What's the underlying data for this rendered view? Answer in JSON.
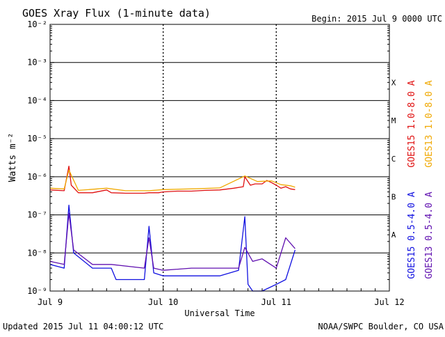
{
  "header": {
    "title": "GOES Xray Flux (1-minute data)",
    "begin": "Begin:  2015 Jul 9 0000 UTC"
  },
  "footer": {
    "updated": "Updated 2015 Jul 11 04:00:12 UTC",
    "credit": "NOAA/SWPC Boulder, CO USA"
  },
  "colors": {
    "goes15_long": "#e01010",
    "goes13_long": "#f0a800",
    "goes15_short": "#1010e0",
    "goes13_short": "#6010b0",
    "grid": "#000000"
  },
  "chart_data": {
    "type": "line",
    "title": "GOES Xray Flux (1-minute data)",
    "xlabel": "Universal Time",
    "ylabel": "Watts m⁻²",
    "y_scale": "log",
    "ylim": [
      1e-09,
      0.01
    ],
    "xlim": [
      "2015-07-09 00:00",
      "2015-07-12 00:00"
    ],
    "x_ticks": [
      "Jul 9",
      "Jul 10",
      "Jul 11",
      "Jul 12"
    ],
    "y_ticks": [
      "10⁻⁹",
      "10⁻⁸",
      "10⁻⁷",
      "10⁻⁶",
      "10⁻⁵",
      "10⁻⁴",
      "10⁻³",
      "10⁻²"
    ],
    "y_tick_values": [
      1e-09,
      1e-08,
      1e-07,
      1e-06,
      1e-05,
      0.0001,
      0.001,
      0.01
    ],
    "flare_classes": [
      {
        "label": "X",
        "value": 0.0003
      },
      {
        "label": "M",
        "value": 3e-05
      },
      {
        "label": "C",
        "value": 3e-06
      },
      {
        "label": "B",
        "value": 3e-07
      },
      {
        "label": "A",
        "value": 3e-08
      }
    ],
    "grid": true,
    "legend_position": "right",
    "series": [
      {
        "name": "GOES15 1.0-8.0 A",
        "color": "#e01010",
        "x": [
          "2015-07-09 00:00",
          "2015-07-09 03:00",
          "2015-07-09 04:00",
          "2015-07-09 04:30",
          "2015-07-09 06:00",
          "2015-07-09 09:00",
          "2015-07-09 12:00",
          "2015-07-09 13:00",
          "2015-07-09 16:00",
          "2015-07-09 20:00",
          "2015-07-09 21:00",
          "2015-07-09 23:00",
          "2015-07-10 00:00",
          "2015-07-10 03:00",
          "2015-07-10 06:00",
          "2015-07-10 09:00",
          "2015-07-10 12:00",
          "2015-07-10 15:00",
          "2015-07-10 17:00",
          "2015-07-10 17:20",
          "2015-07-10 18:30",
          "2015-07-10 19:30",
          "2015-07-10 21:00",
          "2015-07-10 22:00",
          "2015-07-10 23:00",
          "2015-07-11 00:00",
          "2015-07-11 01:00",
          "2015-07-11 02:00",
          "2015-07-11 03:00",
          "2015-07-11 04:00"
        ],
        "values": [
          4.5e-07,
          4.3e-07,
          1.9e-06,
          6e-07,
          3.8e-07,
          3.8e-07,
          4.5e-07,
          3.8e-07,
          3.7e-07,
          3.7e-07,
          3.8e-07,
          3.8e-07,
          4e-07,
          4.2e-07,
          4.2e-07,
          4.4e-07,
          4.5e-07,
          5e-07,
          5.5e-07,
          1e-06,
          6e-07,
          6.5e-07,
          6.5e-07,
          8e-07,
          7e-07,
          6e-07,
          5e-07,
          5.5e-07,
          4.8e-07,
          4.6e-07
        ]
      },
      {
        "name": "GOES13 1.0-8.0 A",
        "color": "#f0a800",
        "x": [
          "2015-07-09 00:00",
          "2015-07-09 03:00",
          "2015-07-09 04:00",
          "2015-07-09 06:00",
          "2015-07-09 12:00",
          "2015-07-09 16:00",
          "2015-07-09 21:00",
          "2015-07-10 00:00",
          "2015-07-10 06:00",
          "2015-07-10 12:00",
          "2015-07-10 17:20",
          "2015-07-10 20:00",
          "2015-07-10 23:00",
          "2015-07-11 01:00",
          "2015-07-11 03:00",
          "2015-07-11 04:00"
        ],
        "values": [
          5e-07,
          4.8e-07,
          1.5e-06,
          4.4e-07,
          5e-07,
          4.3e-07,
          4.3e-07,
          4.6e-07,
          4.8e-07,
          5.1e-07,
          1.05e-06,
          7.5e-07,
          7.8e-07,
          6.2e-07,
          5.8e-07,
          5.3e-07
        ]
      },
      {
        "name": "GOES15 0.5-4.0 A",
        "color": "#1010e0",
        "x": [
          "2015-07-09 00:00",
          "2015-07-09 03:00",
          "2015-07-09 04:00",
          "2015-07-09 05:00",
          "2015-07-09 09:00",
          "2015-07-09 13:00",
          "2015-07-09 14:00",
          "2015-07-09 20:00",
          "2015-07-09 21:00",
          "2015-07-09 22:00",
          "2015-07-10 00:00",
          "2015-07-10 12:00",
          "2015-07-10 16:00",
          "2015-07-10 17:20",
          "2015-07-10 18:00",
          "2015-07-10 19:00",
          "2015-07-10 21:00",
          "2015-07-11 00:00",
          "2015-07-11 02:00",
          "2015-07-11 04:00"
        ],
        "values": [
          5e-09,
          4e-09,
          1.8e-07,
          1e-08,
          4e-09,
          4e-09,
          2e-09,
          2e-09,
          5e-08,
          3e-09,
          2.5e-09,
          2.5e-09,
          3.5e-09,
          9e-08,
          1.5e-09,
          1e-09,
          1e-09,
          1.5e-09,
          2e-09,
          1.2e-08
        ]
      },
      {
        "name": "GOES13 0.5-4.0 A",
        "color": "#6010b0",
        "x": [
          "2015-07-09 00:00",
          "2015-07-09 03:00",
          "2015-07-09 04:00",
          "2015-07-09 05:00",
          "2015-07-09 09:00",
          "2015-07-09 13:00",
          "2015-07-09 20:00",
          "2015-07-09 21:00",
          "2015-07-09 22:00",
          "2015-07-10 00:00",
          "2015-07-10 06:00",
          "2015-07-10 12:00",
          "2015-07-10 16:00",
          "2015-07-10 17:20",
          "2015-07-10 19:00",
          "2015-07-10 21:00",
          "2015-07-11 00:00",
          "2015-07-11 02:00",
          "2015-07-11 04:00"
        ],
        "values": [
          6e-09,
          5e-09,
          1.1e-07,
          1.2e-08,
          5e-09,
          5e-09,
          4e-09,
          2.5e-08,
          4e-09,
          3.5e-09,
          4e-09,
          4e-09,
          4e-09,
          1.4e-08,
          6e-09,
          7e-09,
          4e-09,
          2.5e-08,
          1.3e-08
        ]
      }
    ]
  }
}
